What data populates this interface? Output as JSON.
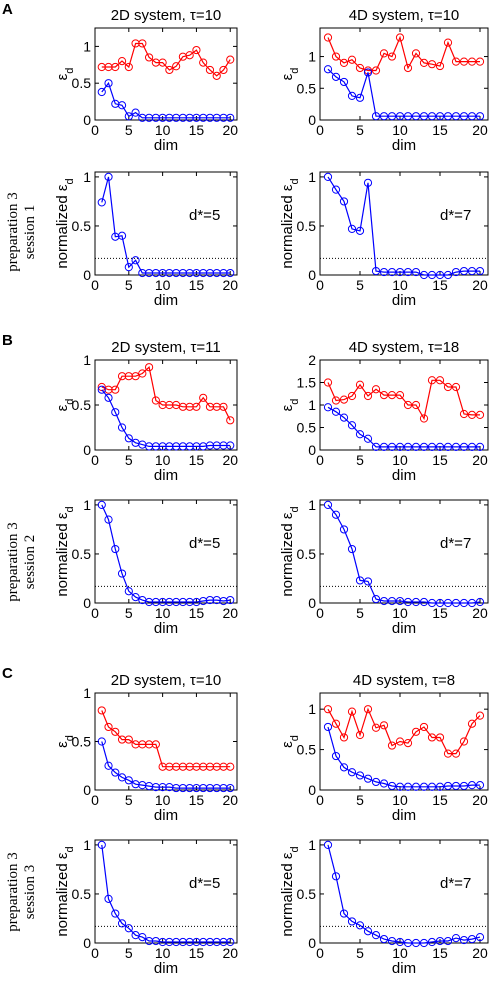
{
  "figure": {
    "panel_letters": [
      "A",
      "B",
      "C"
    ],
    "row_labels": [
      [
        "preparation 3",
        "session 1"
      ],
      [
        "preparation 3",
        "session 2"
      ],
      [
        "preparation 3",
        "session 3"
      ]
    ]
  },
  "chart_data": [
    {
      "type": "line",
      "title": "2D system, τ=10",
      "xlabel": "dim",
      "ylabel": "ε_d",
      "xlim": [
        0,
        21
      ],
      "ylim": [
        0,
        1.25
      ],
      "yticks": [
        0,
        0.5,
        1
      ],
      "xticks": [
        0,
        5,
        10,
        15,
        20
      ],
      "series": [
        {
          "color": "#ff0000",
          "x": [
            1,
            2,
            3,
            4,
            5,
            6,
            7,
            8,
            9,
            10,
            11,
            12,
            13,
            14,
            15,
            16,
            17,
            18,
            19,
            20
          ],
          "values": [
            0.72,
            0.72,
            0.72,
            0.8,
            0.72,
            1.04,
            1.04,
            0.85,
            0.78,
            0.78,
            0.68,
            0.73,
            0.86,
            0.88,
            0.95,
            0.78,
            0.68,
            0.6,
            0.68,
            0.82
          ]
        },
        {
          "color": "#0000ff",
          "x": [
            1,
            2,
            3,
            4,
            5,
            6,
            7,
            8,
            9,
            10,
            11,
            12,
            13,
            14,
            15,
            16,
            17,
            18,
            19,
            20
          ],
          "values": [
            0.38,
            0.5,
            0.22,
            0.2,
            0.05,
            0.1,
            0.03,
            0.03,
            0.03,
            0.03,
            0.03,
            0.03,
            0.03,
            0.03,
            0.03,
            0.03,
            0.03,
            0.03,
            0.03,
            0.03
          ]
        }
      ]
    },
    {
      "type": "line",
      "title": "4D system, τ=10",
      "xlabel": "dim",
      "ylabel": "ε_d",
      "xlim": [
        0,
        21
      ],
      "ylim": [
        0,
        1.45
      ],
      "yticks": [
        0,
        0.5,
        1
      ],
      "xticks": [
        0,
        5,
        10,
        15,
        20
      ],
      "series": [
        {
          "color": "#ff0000",
          "x": [
            1,
            2,
            3,
            4,
            5,
            6,
            7,
            8,
            9,
            10,
            11,
            12,
            13,
            14,
            15,
            16,
            17,
            18,
            19,
            20
          ],
          "values": [
            1.3,
            1.0,
            0.9,
            0.95,
            0.82,
            0.78,
            0.78,
            1.05,
            1.0,
            1.3,
            0.82,
            1.05,
            0.9,
            0.88,
            0.85,
            1.22,
            0.92,
            0.92,
            0.92,
            0.92
          ]
        },
        {
          "color": "#0000ff",
          "x": [
            1,
            2,
            3,
            4,
            5,
            6,
            7,
            8,
            9,
            10,
            11,
            12,
            13,
            14,
            15,
            16,
            17,
            18,
            19,
            20
          ],
          "values": [
            0.8,
            0.68,
            0.6,
            0.38,
            0.35,
            0.75,
            0.06,
            0.06,
            0.06,
            0.06,
            0.06,
            0.06,
            0.06,
            0.06,
            0.06,
            0.06,
            0.06,
            0.06,
            0.06,
            0.06
          ]
        }
      ]
    },
    {
      "type": "line",
      "xlabel": "dim",
      "ylabel": "normalized ε_d",
      "annotation": "d*=5",
      "xlim": [
        0,
        21
      ],
      "ylim": [
        0,
        1.05
      ],
      "yticks": [
        0,
        0.5,
        1
      ],
      "xticks": [
        0,
        5,
        10,
        15,
        20
      ],
      "threshold": 0.17,
      "series": [
        {
          "color": "#0000ff",
          "x": [
            1,
            2,
            3,
            4,
            5,
            6,
            7,
            8,
            9,
            10,
            11,
            12,
            13,
            14,
            15,
            16,
            17,
            18,
            19,
            20
          ],
          "values": [
            0.74,
            1.0,
            0.39,
            0.4,
            0.08,
            0.15,
            0.02,
            0.02,
            0.02,
            0.02,
            0.02,
            0.02,
            0.02,
            0.02,
            0.02,
            0.02,
            0.02,
            0.02,
            0.02,
            0.02
          ]
        }
      ]
    },
    {
      "type": "line",
      "xlabel": "dim",
      "ylabel": "normalized ε_d",
      "annotation": "d*=7",
      "xlim": [
        0,
        21
      ],
      "ylim": [
        0,
        1.05
      ],
      "yticks": [
        0,
        0.5,
        1
      ],
      "xticks": [
        0,
        5,
        10,
        15,
        20
      ],
      "threshold": 0.17,
      "series": [
        {
          "color": "#0000ff",
          "x": [
            1,
            2,
            3,
            4,
            5,
            6,
            7,
            8,
            9,
            10,
            11,
            12,
            13,
            14,
            15,
            16,
            17,
            18,
            19,
            20
          ],
          "values": [
            1.0,
            0.87,
            0.75,
            0.47,
            0.45,
            0.94,
            0.04,
            0.03,
            0.03,
            0.03,
            0.03,
            0.03,
            0.0,
            0.0,
            0.0,
            0.0,
            0.03,
            0.04,
            0.04,
            0.04
          ]
        }
      ]
    },
    {
      "type": "line",
      "title": "2D system, τ=11",
      "xlabel": "dim",
      "ylabel": "ε_d",
      "xlim": [
        0,
        21
      ],
      "ylim": [
        0,
        1.0
      ],
      "yticks": [
        0,
        0.5,
        1
      ],
      "xticks": [
        0,
        5,
        10,
        15,
        20
      ],
      "series": [
        {
          "color": "#ff0000",
          "x": [
            1,
            2,
            3,
            4,
            5,
            6,
            7,
            8,
            9,
            10,
            11,
            12,
            13,
            14,
            15,
            16,
            17,
            18,
            19,
            20
          ],
          "values": [
            0.7,
            0.67,
            0.67,
            0.82,
            0.82,
            0.82,
            0.85,
            0.92,
            0.55,
            0.5,
            0.5,
            0.5,
            0.48,
            0.48,
            0.48,
            0.58,
            0.48,
            0.48,
            0.48,
            0.33
          ]
        },
        {
          "color": "#0000ff",
          "x": [
            1,
            2,
            3,
            4,
            5,
            6,
            7,
            8,
            9,
            10,
            11,
            12,
            13,
            14,
            15,
            16,
            17,
            18,
            19,
            20
          ],
          "values": [
            0.67,
            0.58,
            0.42,
            0.25,
            0.13,
            0.08,
            0.06,
            0.04,
            0.04,
            0.04,
            0.04,
            0.04,
            0.04,
            0.04,
            0.04,
            0.04,
            0.05,
            0.05,
            0.05,
            0.05
          ]
        }
      ]
    },
    {
      "type": "line",
      "title": "4D system, τ=18",
      "xlabel": "dim",
      "ylabel": "ε_d",
      "xlim": [
        0,
        21
      ],
      "ylim": [
        0,
        2
      ],
      "yticks": [
        0,
        0.5,
        1,
        1.5,
        2
      ],
      "xticks": [
        0,
        5,
        10,
        15,
        20
      ],
      "series": [
        {
          "color": "#ff0000",
          "x": [
            1,
            2,
            3,
            4,
            5,
            6,
            7,
            8,
            9,
            10,
            11,
            12,
            13,
            14,
            15,
            16,
            17,
            18,
            19,
            20
          ],
          "values": [
            1.5,
            1.1,
            1.12,
            1.2,
            1.45,
            1.2,
            1.35,
            1.22,
            1.22,
            1.22,
            1.0,
            1.0,
            0.7,
            1.55,
            1.55,
            1.4,
            1.4,
            0.8,
            0.78,
            0.78
          ]
        },
        {
          "color": "#0000ff",
          "x": [
            1,
            2,
            3,
            4,
            5,
            6,
            7,
            8,
            9,
            10,
            11,
            12,
            13,
            14,
            15,
            16,
            17,
            18,
            19,
            20
          ],
          "values": [
            0.95,
            0.85,
            0.72,
            0.55,
            0.35,
            0.25,
            0.07,
            0.07,
            0.07,
            0.07,
            0.07,
            0.07,
            0.07,
            0.07,
            0.07,
            0.07,
            0.07,
            0.07,
            0.07,
            0.07
          ]
        }
      ]
    },
    {
      "type": "line",
      "xlabel": "dim",
      "ylabel": "normalized ε_d",
      "annotation": "d*=5",
      "xlim": [
        0,
        21
      ],
      "ylim": [
        0,
        1.05
      ],
      "yticks": [
        0,
        0.5,
        1
      ],
      "xticks": [
        0,
        5,
        10,
        15,
        20
      ],
      "threshold": 0.17,
      "series": [
        {
          "color": "#0000ff",
          "x": [
            1,
            2,
            3,
            4,
            5,
            6,
            7,
            8,
            9,
            10,
            11,
            12,
            13,
            14,
            15,
            16,
            17,
            18,
            19,
            20
          ],
          "values": [
            1.0,
            0.85,
            0.55,
            0.3,
            0.12,
            0.06,
            0.03,
            0.01,
            0.01,
            0.01,
            0.01,
            0.01,
            0.01,
            0.01,
            0.01,
            0.02,
            0.03,
            0.03,
            0.02,
            0.03
          ]
        }
      ]
    },
    {
      "type": "line",
      "xlabel": "dim",
      "ylabel": "normalized ε_d",
      "annotation": "d*=7",
      "xlim": [
        0,
        21
      ],
      "ylim": [
        0,
        1.05
      ],
      "yticks": [
        0,
        0.5,
        1
      ],
      "xticks": [
        0,
        5,
        10,
        15,
        20
      ],
      "threshold": 0.17,
      "series": [
        {
          "color": "#0000ff",
          "x": [
            1,
            2,
            3,
            4,
            5,
            6,
            7,
            8,
            9,
            10,
            11,
            12,
            13,
            14,
            15,
            16,
            17,
            18,
            19,
            20
          ],
          "values": [
            1.0,
            0.9,
            0.75,
            0.55,
            0.23,
            0.22,
            0.04,
            0.02,
            0.02,
            0.02,
            0.01,
            0.01,
            0.01,
            0.0,
            0.0,
            0.0,
            0.0,
            0.0,
            0.0,
            0.01
          ]
        }
      ]
    },
    {
      "type": "line",
      "title": "2D system, τ=10",
      "xlabel": "dim",
      "ylabel": "ε_d",
      "xlim": [
        0,
        21
      ],
      "ylim": [
        0,
        1.0
      ],
      "yticks": [
        0,
        0.5,
        1
      ],
      "xticks": [
        0,
        5,
        10,
        15,
        20
      ],
      "series": [
        {
          "color": "#ff0000",
          "x": [
            1,
            2,
            3,
            4,
            5,
            6,
            7,
            8,
            9,
            10,
            11,
            12,
            13,
            14,
            15,
            16,
            17,
            18,
            19,
            20
          ],
          "values": [
            0.82,
            0.65,
            0.6,
            0.52,
            0.52,
            0.47,
            0.47,
            0.47,
            0.47,
            0.24,
            0.24,
            0.24,
            0.24,
            0.24,
            0.24,
            0.24,
            0.24,
            0.24,
            0.24,
            0.24
          ]
        },
        {
          "color": "#0000ff",
          "x": [
            1,
            2,
            3,
            4,
            5,
            6,
            7,
            8,
            9,
            10,
            11,
            12,
            13,
            14,
            15,
            16,
            17,
            18,
            19,
            20
          ],
          "values": [
            0.5,
            0.25,
            0.18,
            0.13,
            0.1,
            0.06,
            0.05,
            0.04,
            0.03,
            0.03,
            0.03,
            0.02,
            0.02,
            0.02,
            0.02,
            0.02,
            0.02,
            0.02,
            0.02,
            0.02
          ]
        }
      ]
    },
    {
      "type": "line",
      "title": "4D system, τ=8",
      "xlabel": "dim",
      "ylabel": "ε_d",
      "xlim": [
        0,
        21
      ],
      "ylim": [
        0,
        1.2
      ],
      "yticks": [
        0,
        0.5,
        1
      ],
      "xticks": [
        0,
        5,
        10,
        15,
        20
      ],
      "series": [
        {
          "color": "#ff0000",
          "x": [
            1,
            2,
            3,
            4,
            5,
            6,
            7,
            8,
            9,
            10,
            11,
            12,
            13,
            14,
            15,
            16,
            17,
            18,
            19,
            20
          ],
          "values": [
            1.0,
            0.82,
            0.65,
            0.97,
            0.68,
            1.0,
            0.77,
            0.8,
            0.55,
            0.6,
            0.58,
            0.72,
            0.78,
            0.65,
            0.65,
            0.45,
            0.45,
            0.6,
            0.82,
            0.92
          ]
        },
        {
          "color": "#0000ff",
          "x": [
            1,
            2,
            3,
            4,
            5,
            6,
            7,
            8,
            9,
            10,
            11,
            12,
            13,
            14,
            15,
            16,
            17,
            18,
            19,
            20
          ],
          "values": [
            0.78,
            0.42,
            0.28,
            0.22,
            0.18,
            0.14,
            0.1,
            0.08,
            0.05,
            0.04,
            0.04,
            0.04,
            0.04,
            0.04,
            0.04,
            0.05,
            0.05,
            0.05,
            0.06,
            0.06
          ]
        }
      ]
    },
    {
      "type": "line",
      "xlabel": "dim",
      "ylabel": "normalized ε_d",
      "annotation": "d*=5",
      "xlim": [
        0,
        21
      ],
      "ylim": [
        0,
        1.05
      ],
      "yticks": [
        0,
        0.5,
        1
      ],
      "xticks": [
        0,
        5,
        10,
        15,
        20
      ],
      "threshold": 0.17,
      "series": [
        {
          "color": "#0000ff",
          "x": [
            1,
            2,
            3,
            4,
            5,
            6,
            7,
            8,
            9,
            10,
            11,
            12,
            13,
            14,
            15,
            16,
            17,
            18,
            19,
            20
          ],
          "values": [
            1.0,
            0.45,
            0.3,
            0.2,
            0.15,
            0.08,
            0.06,
            0.02,
            0.02,
            0.01,
            0.01,
            0.01,
            0.01,
            0.01,
            0.01,
            0.01,
            0.01,
            0.01,
            0.01,
            0.01
          ]
        }
      ]
    },
    {
      "type": "line",
      "xlabel": "dim",
      "ylabel": "normalized ε_d",
      "annotation": "d*=7",
      "xlim": [
        0,
        21
      ],
      "ylim": [
        0,
        1.05
      ],
      "yticks": [
        0,
        0.5,
        1
      ],
      "xticks": [
        0,
        5,
        10,
        15,
        20
      ],
      "threshold": 0.17,
      "series": [
        {
          "color": "#0000ff",
          "x": [
            1,
            2,
            3,
            4,
            5,
            6,
            7,
            8,
            9,
            10,
            11,
            12,
            13,
            14,
            15,
            16,
            17,
            18,
            19,
            20
          ],
          "values": [
            1.0,
            0.68,
            0.3,
            0.22,
            0.18,
            0.12,
            0.08,
            0.04,
            0.02,
            0.01,
            0.0,
            0.0,
            0.0,
            0.01,
            0.02,
            0.02,
            0.05,
            0.03,
            0.04,
            0.06
          ]
        }
      ]
    }
  ]
}
